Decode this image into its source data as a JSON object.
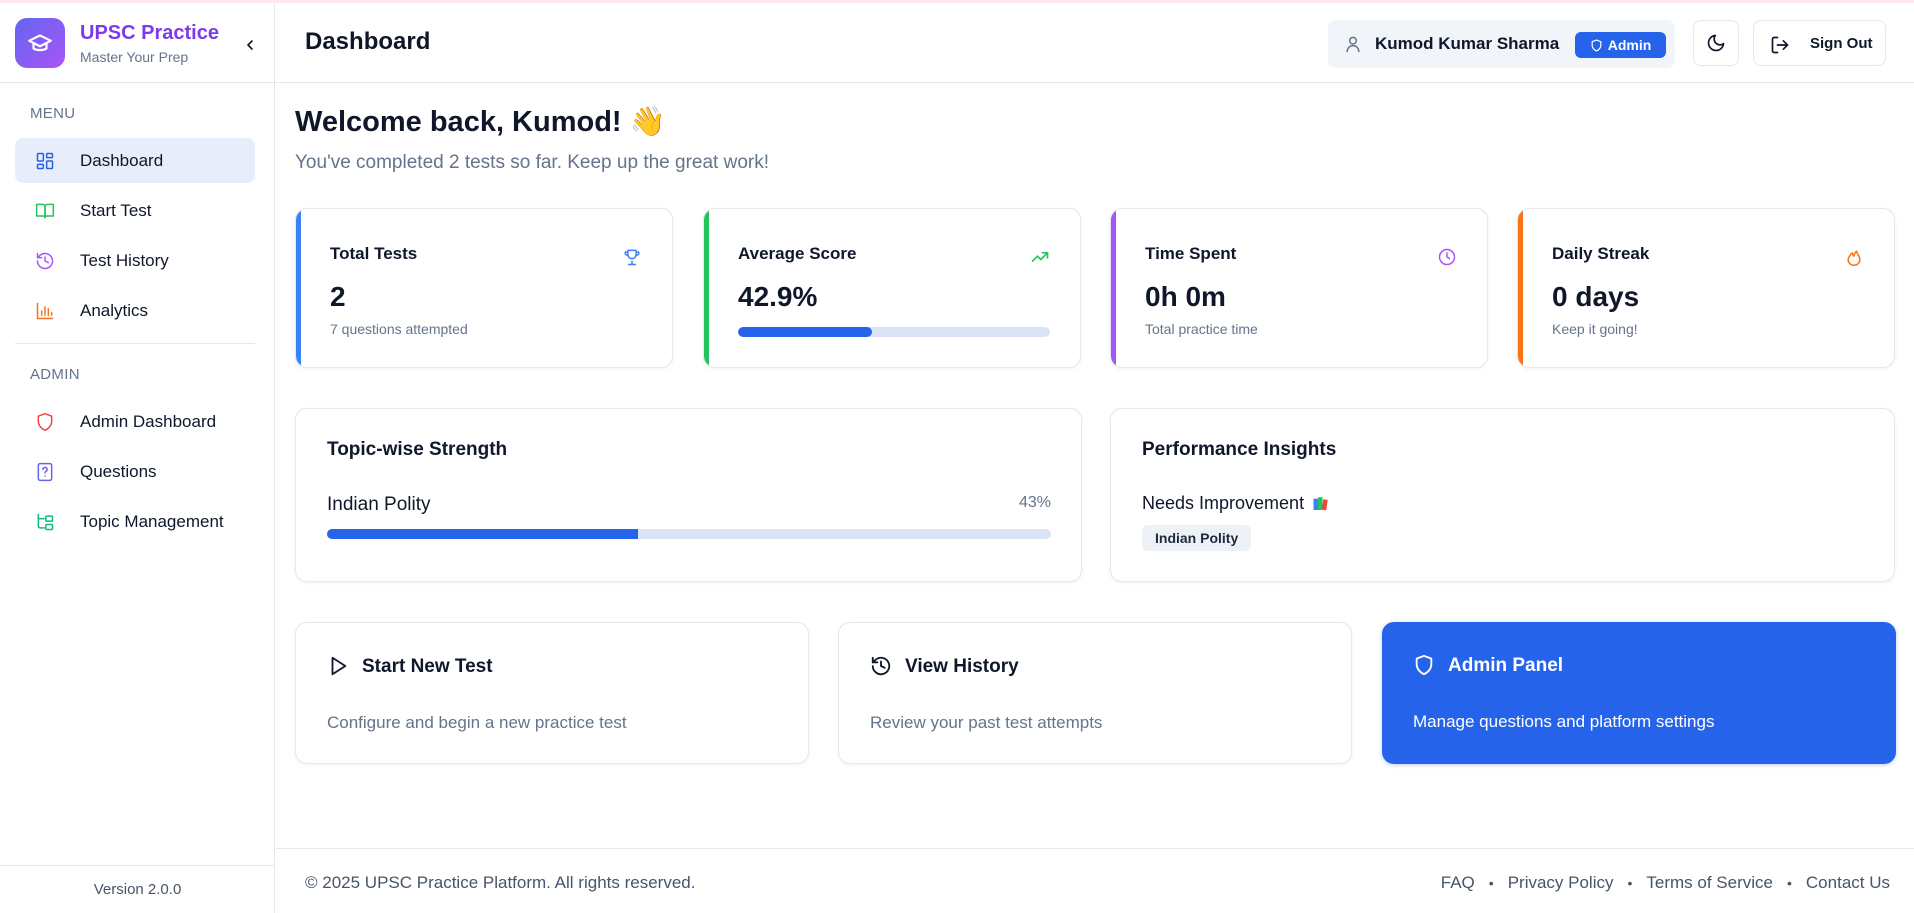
{
  "app": {
    "name": "UPSC Practice",
    "tagline": "Master Your Prep",
    "version": "Version 2.0.0"
  },
  "colors": {
    "brand": "#7c3aed",
    "primary": "#2563eb",
    "green": "#22c55e",
    "purple": "#a855f7",
    "orange": "#f97316",
    "red": "#ef4444"
  },
  "sidebar": {
    "menu_label": "MENU",
    "admin_label": "ADMIN",
    "menu_items": [
      {
        "label": "Dashboard",
        "icon": "grid-icon",
        "active": true
      },
      {
        "label": "Start Test",
        "icon": "book-open-icon"
      },
      {
        "label": "Test History",
        "icon": "history-icon"
      },
      {
        "label": "Analytics",
        "icon": "bar-chart-icon"
      }
    ],
    "admin_items": [
      {
        "label": "Admin Dashboard",
        "icon": "shield-icon"
      },
      {
        "label": "Questions",
        "icon": "file-question-icon"
      },
      {
        "label": "Topic Management",
        "icon": "folder-tree-icon"
      }
    ]
  },
  "header": {
    "title": "Dashboard",
    "user_name": "Kumod Kumar Sharma",
    "role_badge": "Admin",
    "sign_out": "Sign Out"
  },
  "welcome": {
    "heading": "Welcome back, Kumod! 👋",
    "subtitle": "You've completed 2 tests so far. Keep up the great work!"
  },
  "stats": [
    {
      "title": "Total Tests",
      "value": "2",
      "sub": "7 questions attempted",
      "icon": "trophy-icon"
    },
    {
      "title": "Average Score",
      "value": "42.9%",
      "progress": 0.429,
      "icon": "trending-up-icon"
    },
    {
      "title": "Time Spent",
      "value": "0h 0m",
      "sub": "Total practice time",
      "icon": "clock-icon"
    },
    {
      "title": "Daily Streak",
      "value": "0 days",
      "sub": "Keep it going!",
      "icon": "flame-icon"
    }
  ],
  "topic_strength": {
    "title": "Topic-wise Strength",
    "topics": [
      {
        "name": "Indian Polity",
        "percent_label": "43%",
        "progress": 0.43
      }
    ]
  },
  "insights": {
    "title": "Performance Insights",
    "needs_improvement_label": "Needs Improvement",
    "tags": [
      "Indian Polity"
    ]
  },
  "actions": [
    {
      "title": "Start New Test",
      "desc": "Configure and begin a new practice test",
      "icon": "play-icon"
    },
    {
      "title": "View History",
      "desc": "Review your past test attempts",
      "icon": "history-icon"
    },
    {
      "title": "Admin Panel",
      "desc": "Manage questions and platform settings",
      "icon": "shield-icon"
    }
  ],
  "footer": {
    "copyright": "© 2025 UPSC Practice Platform. All rights reserved.",
    "links": [
      "FAQ",
      "Privacy Policy",
      "Terms of Service",
      "Contact Us"
    ],
    "separator": "•"
  }
}
